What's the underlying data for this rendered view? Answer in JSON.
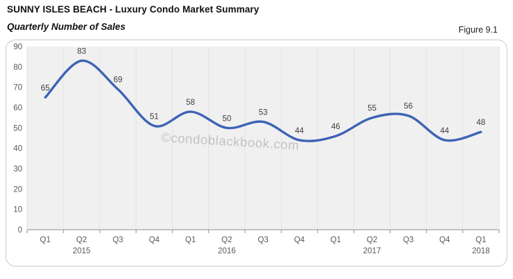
{
  "header": {
    "title": "SUNNY ISLES BEACH - Luxury Condo Market Summary",
    "subtitle": "Quarterly Number of Sales",
    "figure_label": "Figure 9.1"
  },
  "chart_data": {
    "type": "line",
    "title": "Quarterly Number of Sales",
    "categories": [
      "Q1",
      "Q2",
      "Q3",
      "Q4",
      "Q1",
      "Q2",
      "Q3",
      "Q4",
      "Q1",
      "Q2",
      "Q3",
      "Q4",
      "Q1"
    ],
    "year_labels": [
      {
        "index": 1,
        "label": "2015"
      },
      {
        "index": 5,
        "label": "2016"
      },
      {
        "index": 9,
        "label": "2017"
      },
      {
        "index": 12,
        "label": "2018"
      }
    ],
    "series": [
      {
        "name": "Quarterly Number of Sales",
        "values": [
          65,
          83,
          69,
          51,
          58,
          50,
          53,
          44,
          46,
          55,
          56,
          44,
          48
        ]
      }
    ],
    "data_labels_shown": true,
    "smooth": true,
    "ylim": [
      0,
      90
    ],
    "ytick_step": 10,
    "grid": "vertical-only",
    "legend": "none",
    "watermark": "©condoblackbook.com",
    "colors": {
      "line": "#3d63b5",
      "plot_bg": "#f0f0f0",
      "gridline": "#e3e3e3",
      "axis": "#909090",
      "tick_label": "#595959",
      "data_label": "#404040",
      "watermark": "#9e9e9e"
    }
  }
}
